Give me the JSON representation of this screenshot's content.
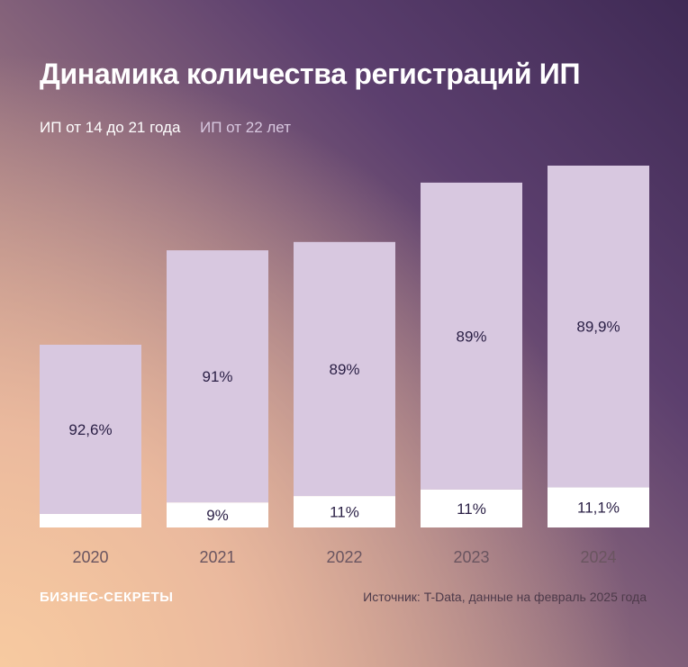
{
  "chart_data": {
    "type": "bar",
    "stacked": true,
    "title": "Динамика количества регистраций ИП",
    "categories": [
      "2020",
      "2021",
      "2022",
      "2023",
      "2024"
    ],
    "relative_totals": [
      50.5,
      76.6,
      78.9,
      95.3,
      100
    ],
    "series": [
      {
        "name": "ИП от 14 до 21 года",
        "color": "#ffffff",
        "values": [
          7.4,
          9,
          11,
          11,
          11.1
        ],
        "labels": [
          "",
          "9%",
          "11%",
          "11%",
          "11,1%"
        ]
      },
      {
        "name": "ИП от 22 лет",
        "color": "#d8c8e0",
        "values": [
          92.6,
          91,
          89,
          89,
          89.9
        ],
        "labels": [
          "92,6%",
          "91%",
          "89%",
          "89%",
          "89,9%"
        ]
      }
    ],
    "legend": "top-left",
    "grid": false
  },
  "footer": {
    "logo": "БИЗНЕС-СЕКРЕТЫ",
    "source": "Источник: T-Data, данные на февраль 2025 года"
  }
}
